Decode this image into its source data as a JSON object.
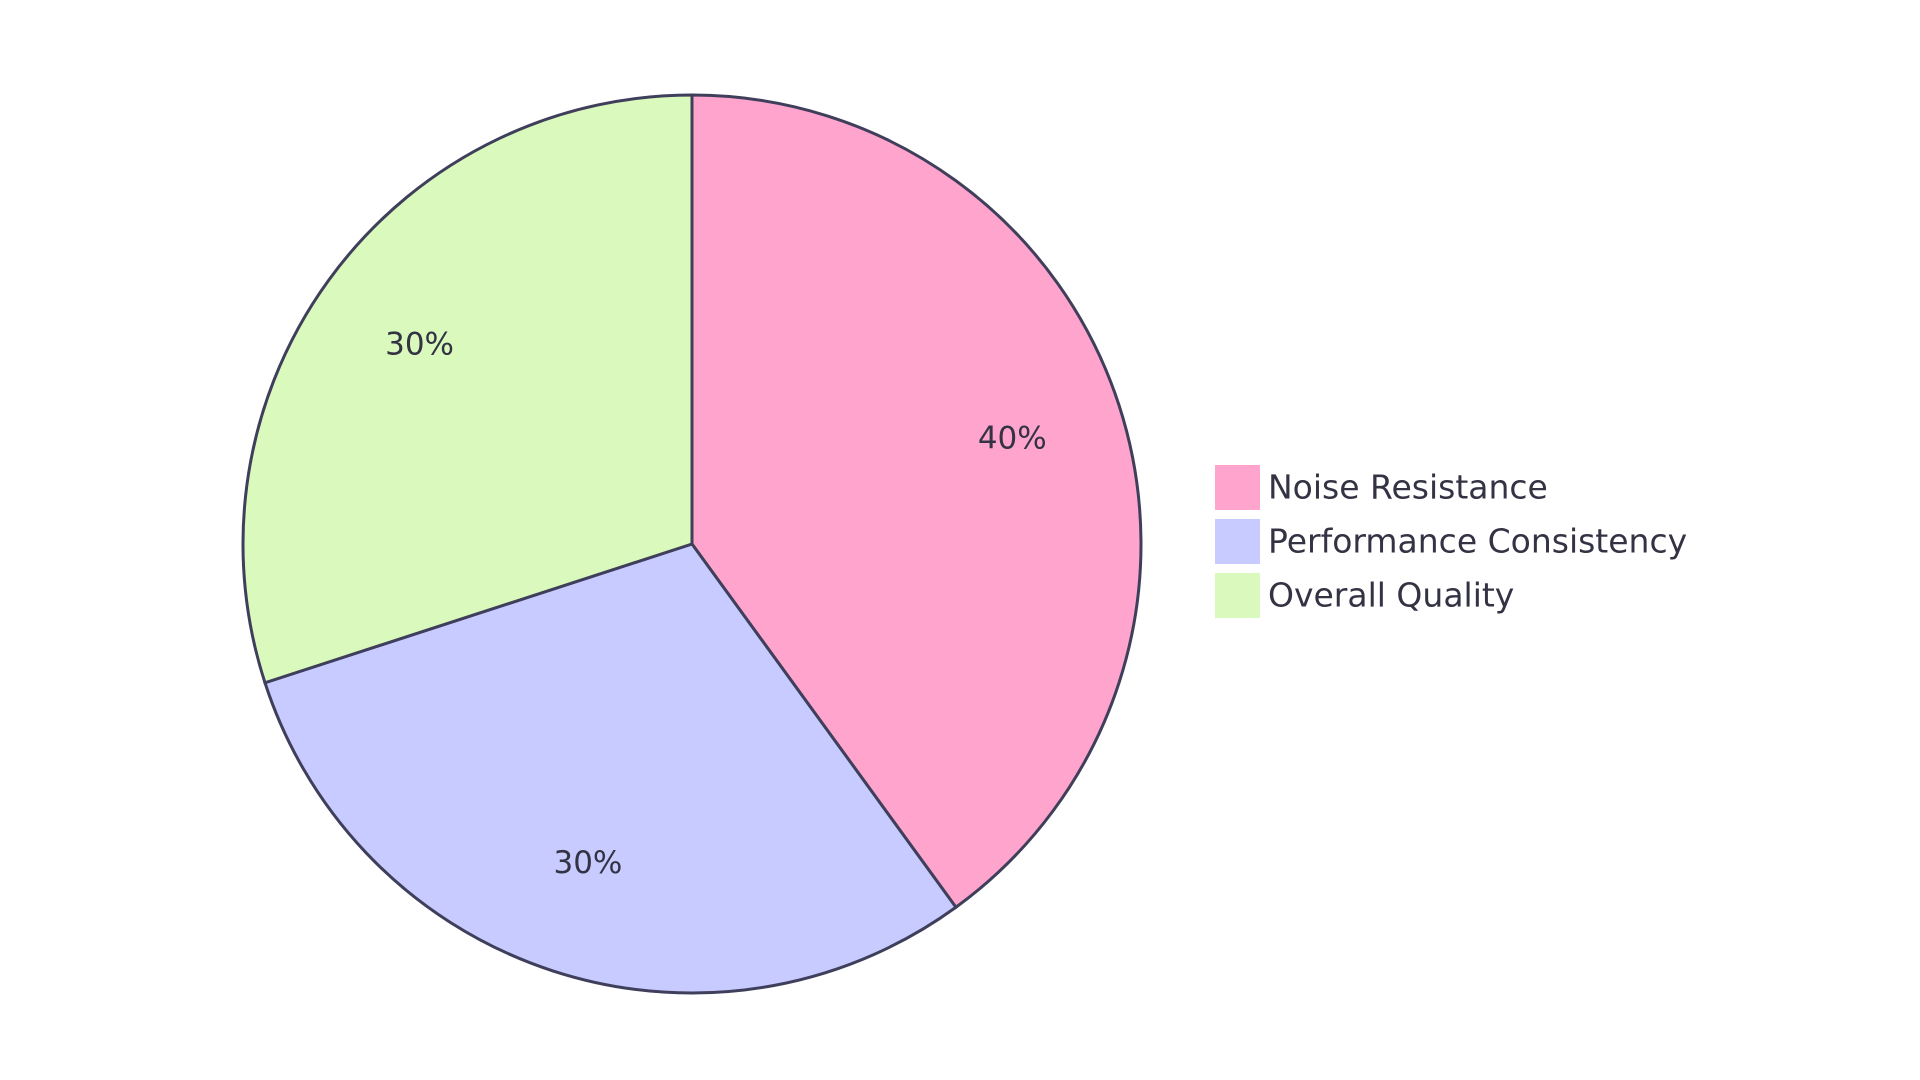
{
  "chart_data": {
    "type": "pie",
    "categories": [
      "Noise Resistance",
      "Performance Consistency",
      "Overall Quality"
    ],
    "values": [
      40,
      30,
      30
    ],
    "value_labels": [
      "40%",
      "30%",
      "30%"
    ],
    "colors": [
      "#ffa4cd",
      "#c8cbff",
      "#dafabd"
    ]
  }
}
